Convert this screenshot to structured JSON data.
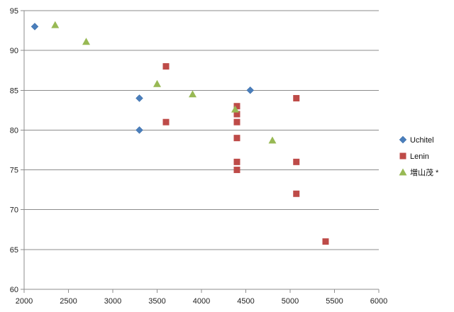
{
  "chart_data": {
    "type": "scatter",
    "title": "",
    "xlabel": "",
    "ylabel": "",
    "xlim": [
      2000,
      6000
    ],
    "ylim": [
      60,
      95
    ],
    "x_ticks": [
      2000,
      2500,
      3000,
      3500,
      4000,
      4500,
      5000,
      5500,
      6000
    ],
    "y_ticks": [
      60,
      65,
      70,
      75,
      80,
      85,
      90,
      95
    ],
    "x_tick_labels": [
      "2000",
      "2500",
      "3000",
      "3500",
      "4000",
      "4500",
      "5000",
      "5500",
      "6000"
    ],
    "y_tick_labels": [
      "60",
      "65",
      "70",
      "75",
      "80",
      "85",
      "90",
      "95"
    ],
    "grid": "horizontal",
    "legend_position": "right",
    "series": [
      {
        "name": "Uchitel",
        "marker": "diamond",
        "color": "#4a7ebb",
        "points": [
          {
            "x": 2120,
            "y": 93
          },
          {
            "x": 3300,
            "y": 84
          },
          {
            "x": 3300,
            "y": 80
          },
          {
            "x": 4550,
            "y": 85
          }
        ]
      },
      {
        "name": "Lenin",
        "marker": "square",
        "color": "#be4b48",
        "points": [
          {
            "x": 3600,
            "y": 88
          },
          {
            "x": 3600,
            "y": 81
          },
          {
            "x": 4400,
            "y": 83
          },
          {
            "x": 4400,
            "y": 82
          },
          {
            "x": 4400,
            "y": 81
          },
          {
            "x": 4400,
            "y": 79
          },
          {
            "x": 4400,
            "y": 76
          },
          {
            "x": 4400,
            "y": 75
          },
          {
            "x": 5070,
            "y": 84
          },
          {
            "x": 5070,
            "y": 76
          },
          {
            "x": 5070,
            "y": 72
          },
          {
            "x": 5400,
            "y": 66
          }
        ]
      },
      {
        "name": "増山茂 *",
        "marker": "triangle",
        "color": "#98b954",
        "points": [
          {
            "x": 2350,
            "y": 93.2
          },
          {
            "x": 2700,
            "y": 91.1
          },
          {
            "x": 3500,
            "y": 85.8
          },
          {
            "x": 3900,
            "y": 84.5
          },
          {
            "x": 4380,
            "y": 82.6
          },
          {
            "x": 4800,
            "y": 78.7
          }
        ]
      }
    ]
  }
}
